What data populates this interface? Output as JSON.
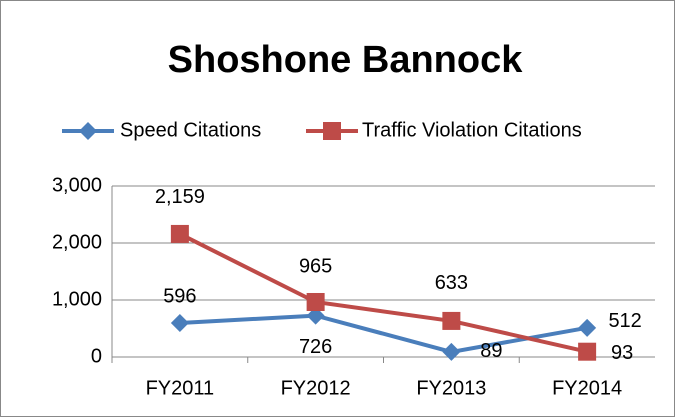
{
  "chart_data": {
    "type": "line",
    "title": "Shoshone Bannock",
    "categories": [
      "FY2011",
      "FY2012",
      "FY2013",
      "FY2014"
    ],
    "series": [
      {
        "name": "Speed Citations",
        "color": "#4a7ebb",
        "marker": "diamond",
        "values": [
          596,
          726,
          89,
          512
        ],
        "value_labels": [
          "596",
          "726",
          "89",
          "512"
        ]
      },
      {
        "name": "Traffic Violation Citations",
        "color": "#be4b48",
        "marker": "square",
        "values": [
          2159,
          965,
          633,
          93
        ],
        "value_labels": [
          "2,159",
          "965",
          "633",
          "93"
        ]
      }
    ],
    "ylim": [
      0,
      3000
    ],
    "yticks": [
      0,
      {
        "value": 1000,
        "label": "1,000"
      },
      {
        "value": 2000,
        "label": "2,000"
      },
      {
        "value": 3000,
        "label": "3,000"
      }
    ],
    "grid": true,
    "legend": "top"
  }
}
